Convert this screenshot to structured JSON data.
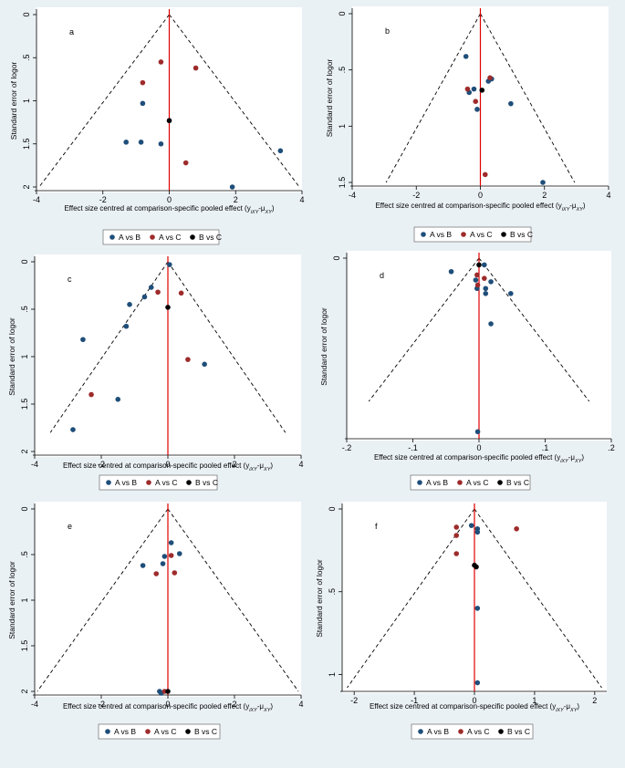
{
  "series_colors": {
    "A vs B": "#1f4e79",
    "A vs C": "#9e2b2b",
    "B vs C": "#000000"
  },
  "legend": [
    "A vs B",
    "A vs C",
    "B vs C"
  ],
  "chart_data": [
    {
      "type": "scatter",
      "label": "a",
      "xlabel": "Effect size centred at comparison-specific pooled effect (y",
      "xlabel_sub": "iXY",
      "xlabel_mid": "-μ",
      "xlabel_sub2": "XY",
      "xlabel_end": ")",
      "ylabel": "Standard error of logor",
      "xlim": [
        -4,
        4
      ],
      "ylim": [
        0,
        2
      ],
      "y_reversed": true,
      "xticks": [
        -4,
        -2,
        0,
        2,
        4
      ],
      "yticks": [
        0,
        0.5,
        1,
        1.5,
        2
      ],
      "ytick_labels": [
        "0",
        ".5",
        "1",
        "1.5",
        "2"
      ],
      "funnel_se": 2,
      "funnel_apex": 0,
      "series": [
        {
          "name": "A vs B",
          "points": [
            [
              -0.8,
              1.03
            ],
            [
              -1.3,
              1.48
            ],
            [
              -0.85,
              1.48
            ],
            [
              -0.25,
              1.5
            ],
            [
              3.35,
              1.58
            ],
            [
              1.9,
              2.0
            ]
          ]
        },
        {
          "name": "A vs C",
          "points": [
            [
              -0.8,
              0.79
            ],
            [
              -0.25,
              0.55
            ],
            [
              0.8,
              0.62
            ],
            [
              0.5,
              1.72
            ]
          ]
        },
        {
          "name": "B vs C",
          "points": [
            [
              0.0,
              1.23
            ]
          ]
        }
      ]
    },
    {
      "type": "scatter",
      "label": "b",
      "xlabel": "Effect size centred at comparison-specific pooled effect (y",
      "xlabel_sub": "iXY",
      "xlabel_mid": "-μ",
      "xlabel_sub2": "XY",
      "xlabel_end": ")",
      "ylabel": "Standard error of logor",
      "xlim": [
        -4,
        4
      ],
      "ylim": [
        0,
        1.5
      ],
      "y_reversed": true,
      "xticks": [
        -4,
        -2,
        0,
        2,
        4
      ],
      "yticks": [
        0,
        0.5,
        1,
        1.5
      ],
      "ytick_labels": [
        "0",
        ".5",
        "1",
        "1.5"
      ],
      "funnel_se": 1.5,
      "funnel_apex": 0,
      "series": [
        {
          "name": "A vs B",
          "points": [
            [
              -0.45,
              0.38
            ],
            [
              -0.35,
              0.7
            ],
            [
              -0.2,
              0.67
            ],
            [
              -0.1,
              0.85
            ],
            [
              0.25,
              0.6
            ],
            [
              0.35,
              0.58
            ],
            [
              0.95,
              0.8
            ],
            [
              1.95,
              1.5
            ]
          ]
        },
        {
          "name": "A vs C",
          "points": [
            [
              -0.4,
              0.67
            ],
            [
              -0.15,
              0.78
            ],
            [
              0.3,
              0.57
            ],
            [
              0.15,
              1.43
            ]
          ]
        },
        {
          "name": "B vs C",
          "points": [
            [
              0.05,
              0.68
            ]
          ]
        }
      ]
    },
    {
      "type": "scatter",
      "label": "c",
      "xlabel": "Effect size centred at comparison-specific pooled effect (y",
      "xlabel_sub": "iXY",
      "xlabel_mid": "-μ",
      "xlabel_sub2": "XY",
      "xlabel_end": ")",
      "ylabel": "Standard error of logor",
      "xlim": [
        -4,
        4
      ],
      "ylim": [
        0,
        2
      ],
      "y_reversed": true,
      "xticks": [
        -4,
        -2,
        0,
        2,
        4
      ],
      "yticks": [
        0,
        0.5,
        1,
        1.5,
        2
      ],
      "ytick_labels": [
        "0",
        ".5",
        "1",
        "1.5",
        "2"
      ],
      "funnel_se": 1.8,
      "funnel_apex": 0,
      "series": [
        {
          "name": "A vs B",
          "points": [
            [
              0.05,
              0.03
            ],
            [
              -0.5,
              0.27
            ],
            [
              -0.7,
              0.37
            ],
            [
              -1.15,
              0.45
            ],
            [
              -1.25,
              0.68
            ],
            [
              -2.55,
              0.82
            ],
            [
              -1.5,
              1.45
            ],
            [
              -2.85,
              1.77
            ],
            [
              1.1,
              1.08
            ]
          ]
        },
        {
          "name": "A vs C",
          "points": [
            [
              -0.3,
              0.32
            ],
            [
              0.4,
              0.33
            ],
            [
              0.6,
              1.03
            ],
            [
              -2.3,
              1.4
            ]
          ]
        },
        {
          "name": "B vs C",
          "points": [
            [
              0.0,
              0.48
            ]
          ]
        }
      ]
    },
    {
      "type": "scatter",
      "label": "d",
      "xlabel": "Effect size centred at comparison-specific pooled effect (y",
      "xlabel_sub": "iXY",
      "xlabel_mid": "-μ",
      "xlabel_sub2": "XY",
      "xlabel_end": ")",
      "ylabel": "Standard error of logor",
      "xlim": [
        -0.2,
        0.2
      ],
      "ylim": [
        0,
        0.105
      ],
      "y_reversed": true,
      "xticks": [
        -0.2,
        -0.1,
        0,
        0.1,
        0.2
      ],
      "xtick_labels": [
        "-.2",
        "-.1",
        "0",
        ".1",
        ".2"
      ],
      "yticks": [
        0
      ],
      "ytick_labels": [
        "0"
      ],
      "funnel_se": 0.085,
      "funnel_apex": 0,
      "series": [
        {
          "name": "A vs B",
          "points": [
            [
              -0.042,
              0.008
            ],
            [
              -0.005,
              0.013
            ],
            [
              -0.003,
              0.018
            ],
            [
              0.008,
              0.004
            ],
            [
              0.01,
              0.018
            ],
            [
              0.01,
              0.021
            ],
            [
              0.018,
              0.014
            ],
            [
              0.048,
              0.021
            ],
            [
              0.018,
              0.039
            ],
            [
              -0.002,
              0.103
            ]
          ]
        },
        {
          "name": "A vs C",
          "points": [
            [
              -0.003,
              0.01
            ],
            [
              -0.002,
              0.016
            ],
            [
              0.008,
              0.012
            ]
          ]
        },
        {
          "name": "B vs C",
          "points": [
            [
              0.0,
              0.004
            ]
          ]
        }
      ]
    },
    {
      "type": "scatter",
      "label": "e",
      "xlabel": "Effect size centred at comparison-specific pooled effect (y",
      "xlabel_sub": "iXY",
      "xlabel_mid": "-μ",
      "xlabel_sub2": "XY",
      "xlabel_end": ")",
      "ylabel": "Standard error of logor",
      "xlim": [
        -4,
        4
      ],
      "ylim": [
        0,
        2
      ],
      "y_reversed": true,
      "xticks": [
        -4,
        -2,
        0,
        2,
        4
      ],
      "yticks": [
        0,
        0.5,
        1,
        1.5,
        2
      ],
      "ytick_labels": [
        "0",
        ".5",
        "1",
        "1.5",
        "2"
      ],
      "funnel_se": 2,
      "funnel_apex": 0,
      "series": [
        {
          "name": "A vs B",
          "points": [
            [
              0.1,
              0.37
            ],
            [
              0.35,
              0.49
            ],
            [
              -0.1,
              0.52
            ],
            [
              -0.15,
              0.6
            ],
            [
              -0.75,
              0.62
            ],
            [
              -0.25,
              2.0
            ],
            [
              -0.2,
              2.02
            ]
          ]
        },
        {
          "name": "A vs C",
          "points": [
            [
              0.1,
              0.51
            ],
            [
              -0.35,
              0.71
            ],
            [
              0.2,
              0.7
            ],
            [
              -0.1,
              2.0
            ]
          ]
        },
        {
          "name": "B vs C",
          "points": [
            [
              0.0,
              2.0
            ]
          ]
        }
      ]
    },
    {
      "type": "scatter",
      "label": "f",
      "xlabel": "Effect size centred at comparison-specific pooled effect (y",
      "xlabel_sub": "iXY",
      "xlabel_mid": "-μ",
      "xlabel_sub2": "XY",
      "xlabel_end": ")",
      "ylabel": "Standard error of logor",
      "xlim": [
        -2.2,
        2.2
      ],
      "ylim": [
        0,
        1.08
      ],
      "y_reversed": true,
      "xticks": [
        -2,
        -1,
        0,
        1,
        2
      ],
      "yticks": [
        0,
        0.5,
        1
      ],
      "ytick_labels": [
        "0",
        ".5",
        "1"
      ],
      "funnel_se": 1.08,
      "funnel_apex": 0,
      "series": [
        {
          "name": "A vs B",
          "points": [
            [
              -0.05,
              0.1
            ],
            [
              0.05,
              0.12
            ],
            [
              0.05,
              0.14
            ],
            [
              0.05,
              0.6
            ],
            [
              0.05,
              1.05
            ]
          ]
        },
        {
          "name": "A vs C",
          "points": [
            [
              -0.3,
              0.11
            ],
            [
              -0.3,
              0.16
            ],
            [
              -0.3,
              0.27
            ],
            [
              0.7,
              0.12
            ]
          ]
        },
        {
          "name": "B vs C",
          "points": [
            [
              0.0,
              0.34
            ],
            [
              0.03,
              0.35
            ]
          ]
        }
      ]
    }
  ]
}
